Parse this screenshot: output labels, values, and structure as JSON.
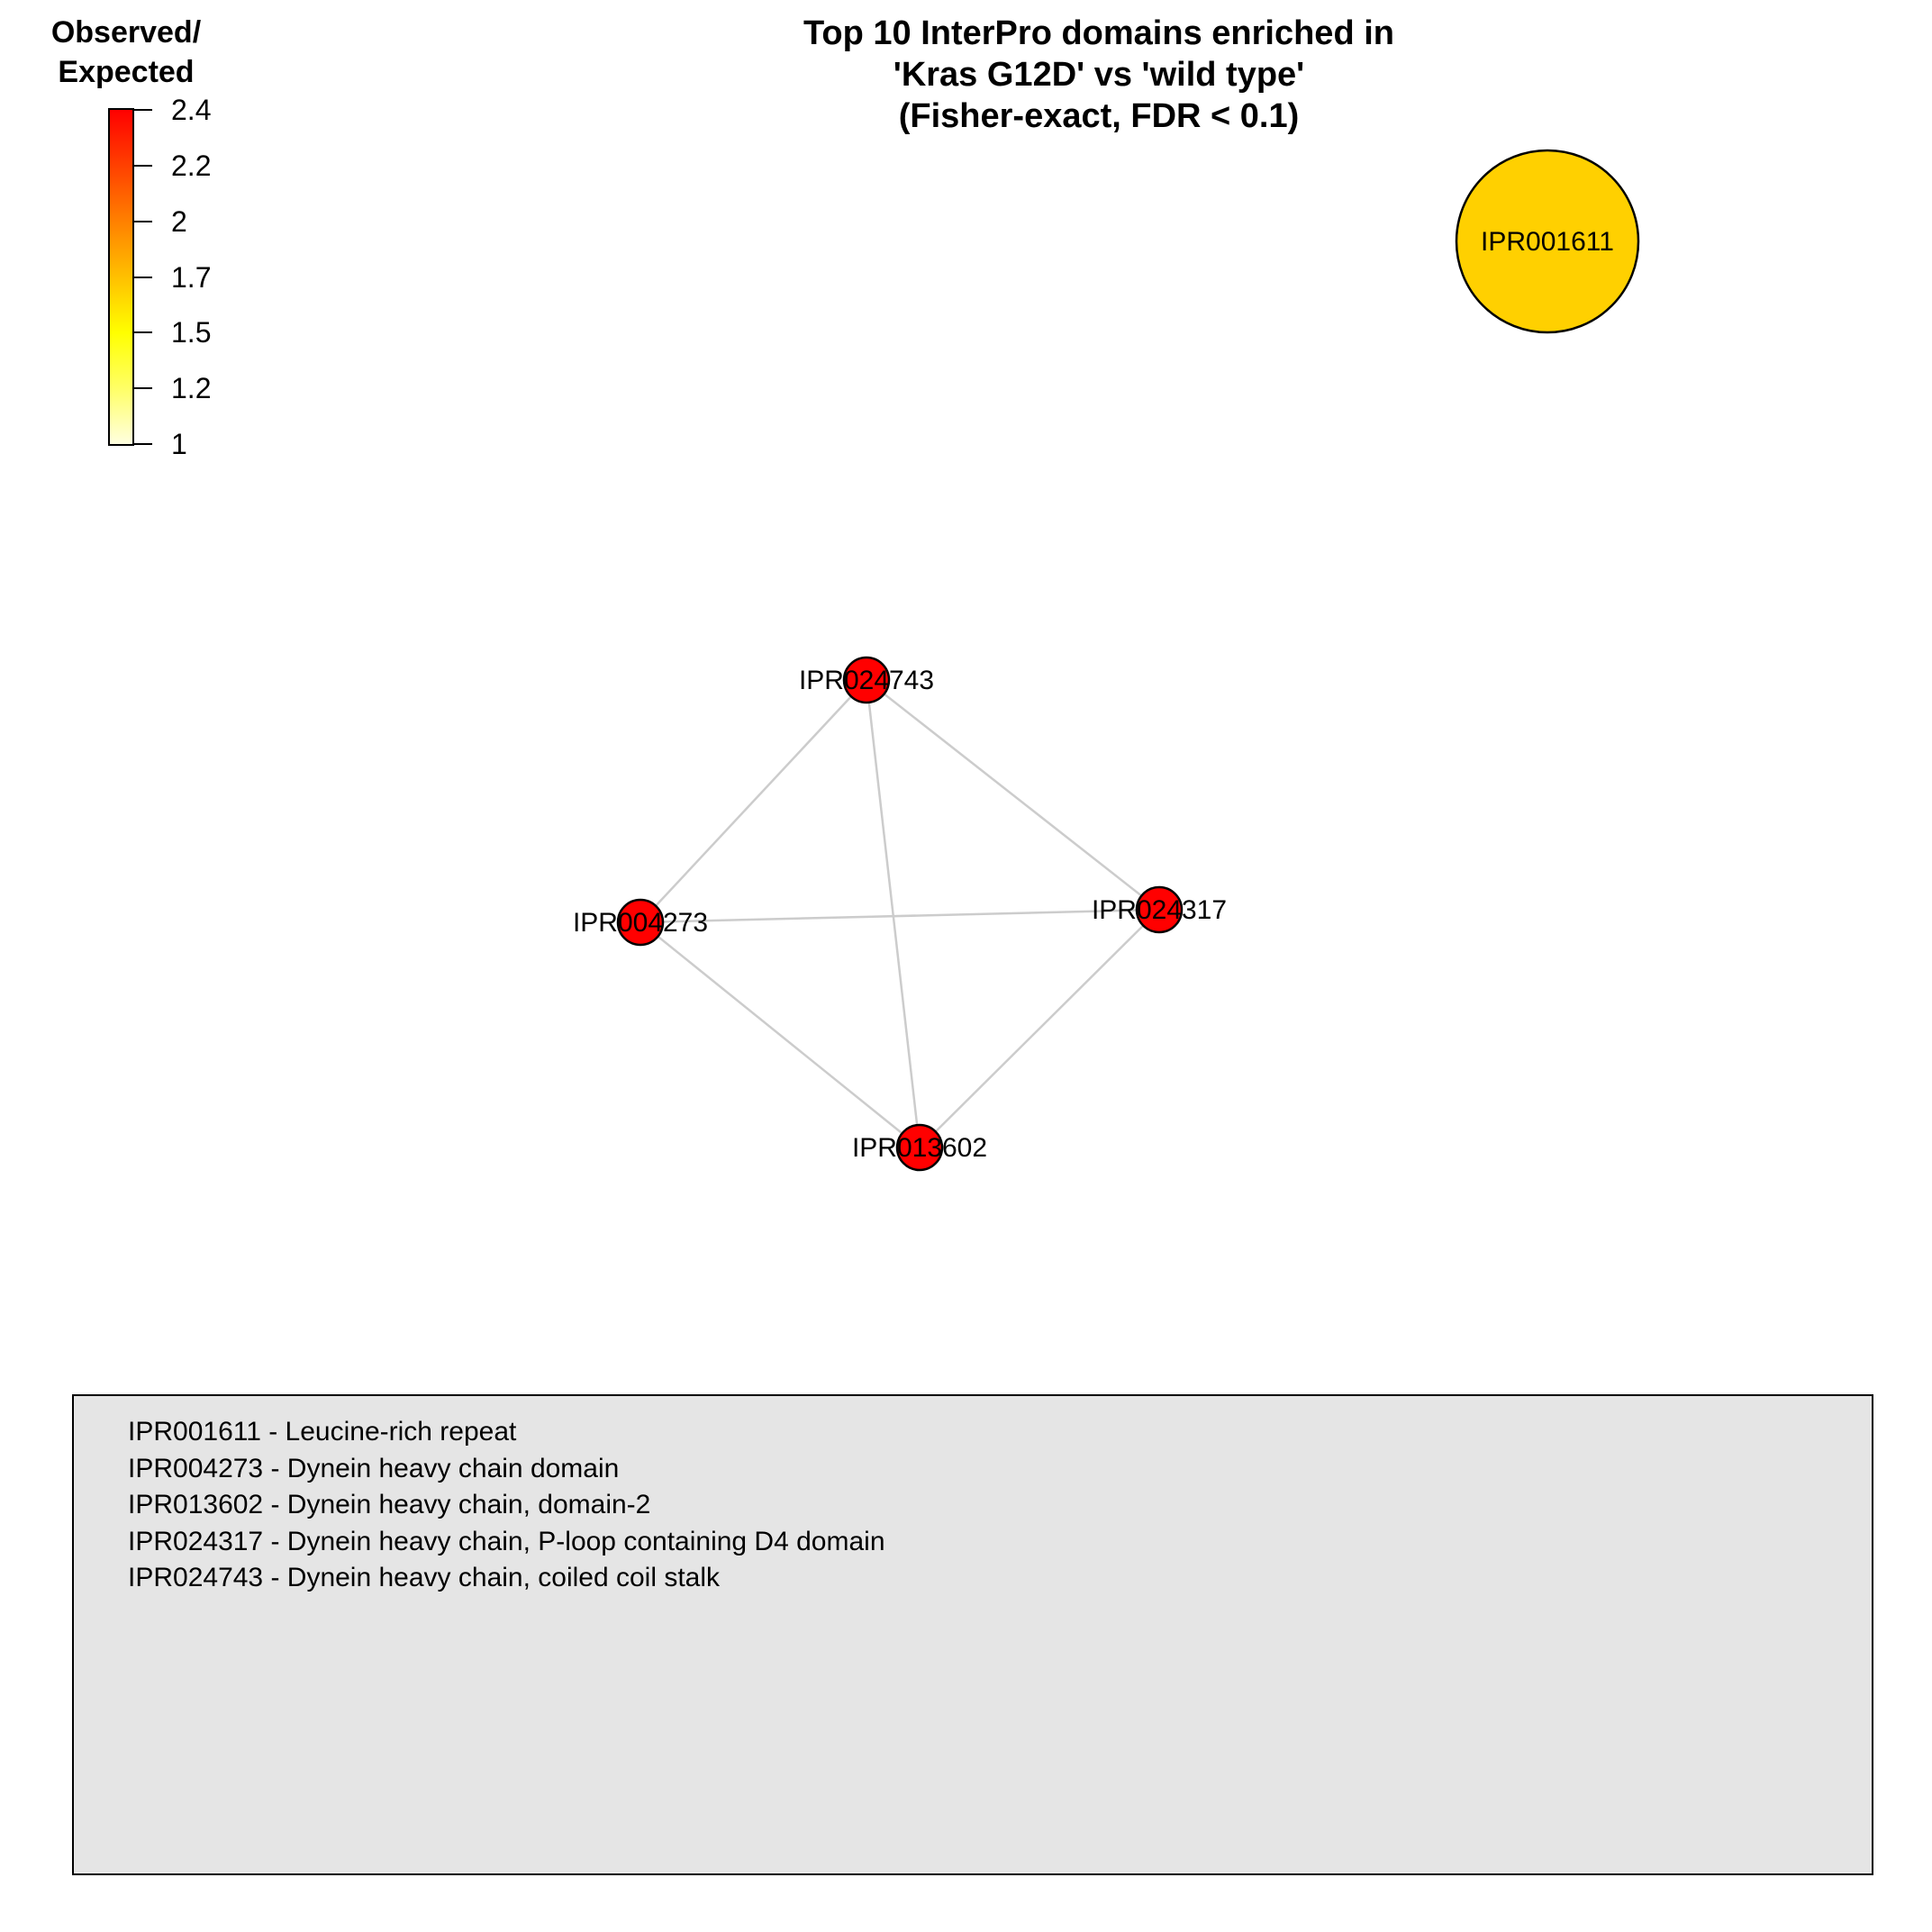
{
  "title": {
    "line1": "Top 10 InterPro domains enriched in",
    "line2": "'Kras G12D' vs 'wild type'",
    "line3": "(Fisher-exact, FDR < 0.1)"
  },
  "colorbar": {
    "title_line1": "Observed/",
    "title_line2": "Expected",
    "min": 1,
    "max": 2.4,
    "gradient": [
      "#ffffe0",
      "#ffff66",
      "#ffff00",
      "#ffc000",
      "#ff8000",
      "#ff4000",
      "#ff0000"
    ],
    "ticks": [
      "2.4",
      "2.2",
      "2",
      "1.7",
      "1.5",
      "1.2",
      "1"
    ]
  },
  "network": {
    "edge_color": "#cccccc",
    "nodes": [
      {
        "id": "IPR001611",
        "color": "#ffd000",
        "size": "large"
      },
      {
        "id": "IPR024743",
        "color": "#ff0000",
        "size": "small"
      },
      {
        "id": "IPR004273",
        "color": "#ff0000",
        "size": "small"
      },
      {
        "id": "IPR024317",
        "color": "#ff0000",
        "size": "small"
      },
      {
        "id": "IPR013602",
        "color": "#ff0000",
        "size": "small"
      }
    ],
    "edges": [
      [
        "IPR024743",
        "IPR004273"
      ],
      [
        "IPR024743",
        "IPR024317"
      ],
      [
        "IPR024743",
        "IPR013602"
      ],
      [
        "IPR004273",
        "IPR024317"
      ],
      [
        "IPR004273",
        "IPR013602"
      ],
      [
        "IPR024317",
        "IPR013602"
      ]
    ]
  },
  "descriptions": {
    "background": "#e5e5e5",
    "items": [
      "IPR001611 - Leucine-rich repeat",
      "IPR004273 - Dynein heavy chain domain",
      "IPR013602 - Dynein heavy chain, domain-2",
      "IPR024317 - Dynein heavy chain, P-loop containing D4 domain",
      "IPR024743 - Dynein heavy chain, coiled coil stalk"
    ]
  }
}
